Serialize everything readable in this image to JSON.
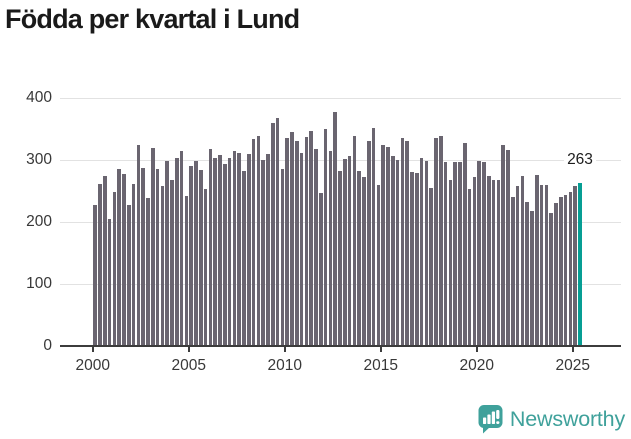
{
  "title": "Födda per kvartal i Lund",
  "footer": {
    "brand": "Newsworthy",
    "logo_icon": "newsworthy-chart-bubble-icon"
  },
  "colors": {
    "bar": "#6a6570",
    "highlight": "#069e94",
    "brand": "#3fa19b",
    "grid": "#e2e2e2",
    "axis": "#3c3c3c",
    "title_text": "#1a1a1a",
    "tick_text": "#383838"
  },
  "chart_data": {
    "type": "bar",
    "title": "Födda per kvartal i Lund",
    "x_start": "2000-Q1",
    "x_interval": "quarter",
    "x_tick_years": [
      2000,
      2005,
      2010,
      2015,
      2020,
      2025
    ],
    "y_ticks": [
      0,
      100,
      200,
      300,
      400
    ],
    "ylim": [
      0,
      400
    ],
    "grid": true,
    "legend": false,
    "highlight_index": 101,
    "highlight_label": "263",
    "highlight_value": 263,
    "values": [
      227,
      261,
      274,
      205,
      248,
      285,
      278,
      228,
      261,
      325,
      287,
      239,
      319,
      285,
      258,
      298,
      268,
      303,
      314,
      242,
      290,
      298,
      284,
      253,
      317,
      304,
      308,
      293,
      304,
      314,
      311,
      283,
      309,
      334,
      338,
      300,
      309,
      360,
      367,
      286,
      336,
      345,
      330,
      312,
      337,
      346,
      317,
      247,
      350,
      315,
      378,
      283,
      302,
      307,
      338,
      282,
      272,
      330,
      352,
      260,
      324,
      321,
      306,
      300,
      336,
      330,
      280,
      279,
      304,
      299,
      255,
      336,
      339,
      296,
      268,
      297,
      297,
      327,
      254,
      272,
      299,
      296,
      274,
      268,
      268,
      325,
      316,
      241,
      258,
      274,
      233,
      217,
      276,
      260,
      260,
      214,
      230,
      241,
      244,
      249,
      258,
      263
    ]
  }
}
